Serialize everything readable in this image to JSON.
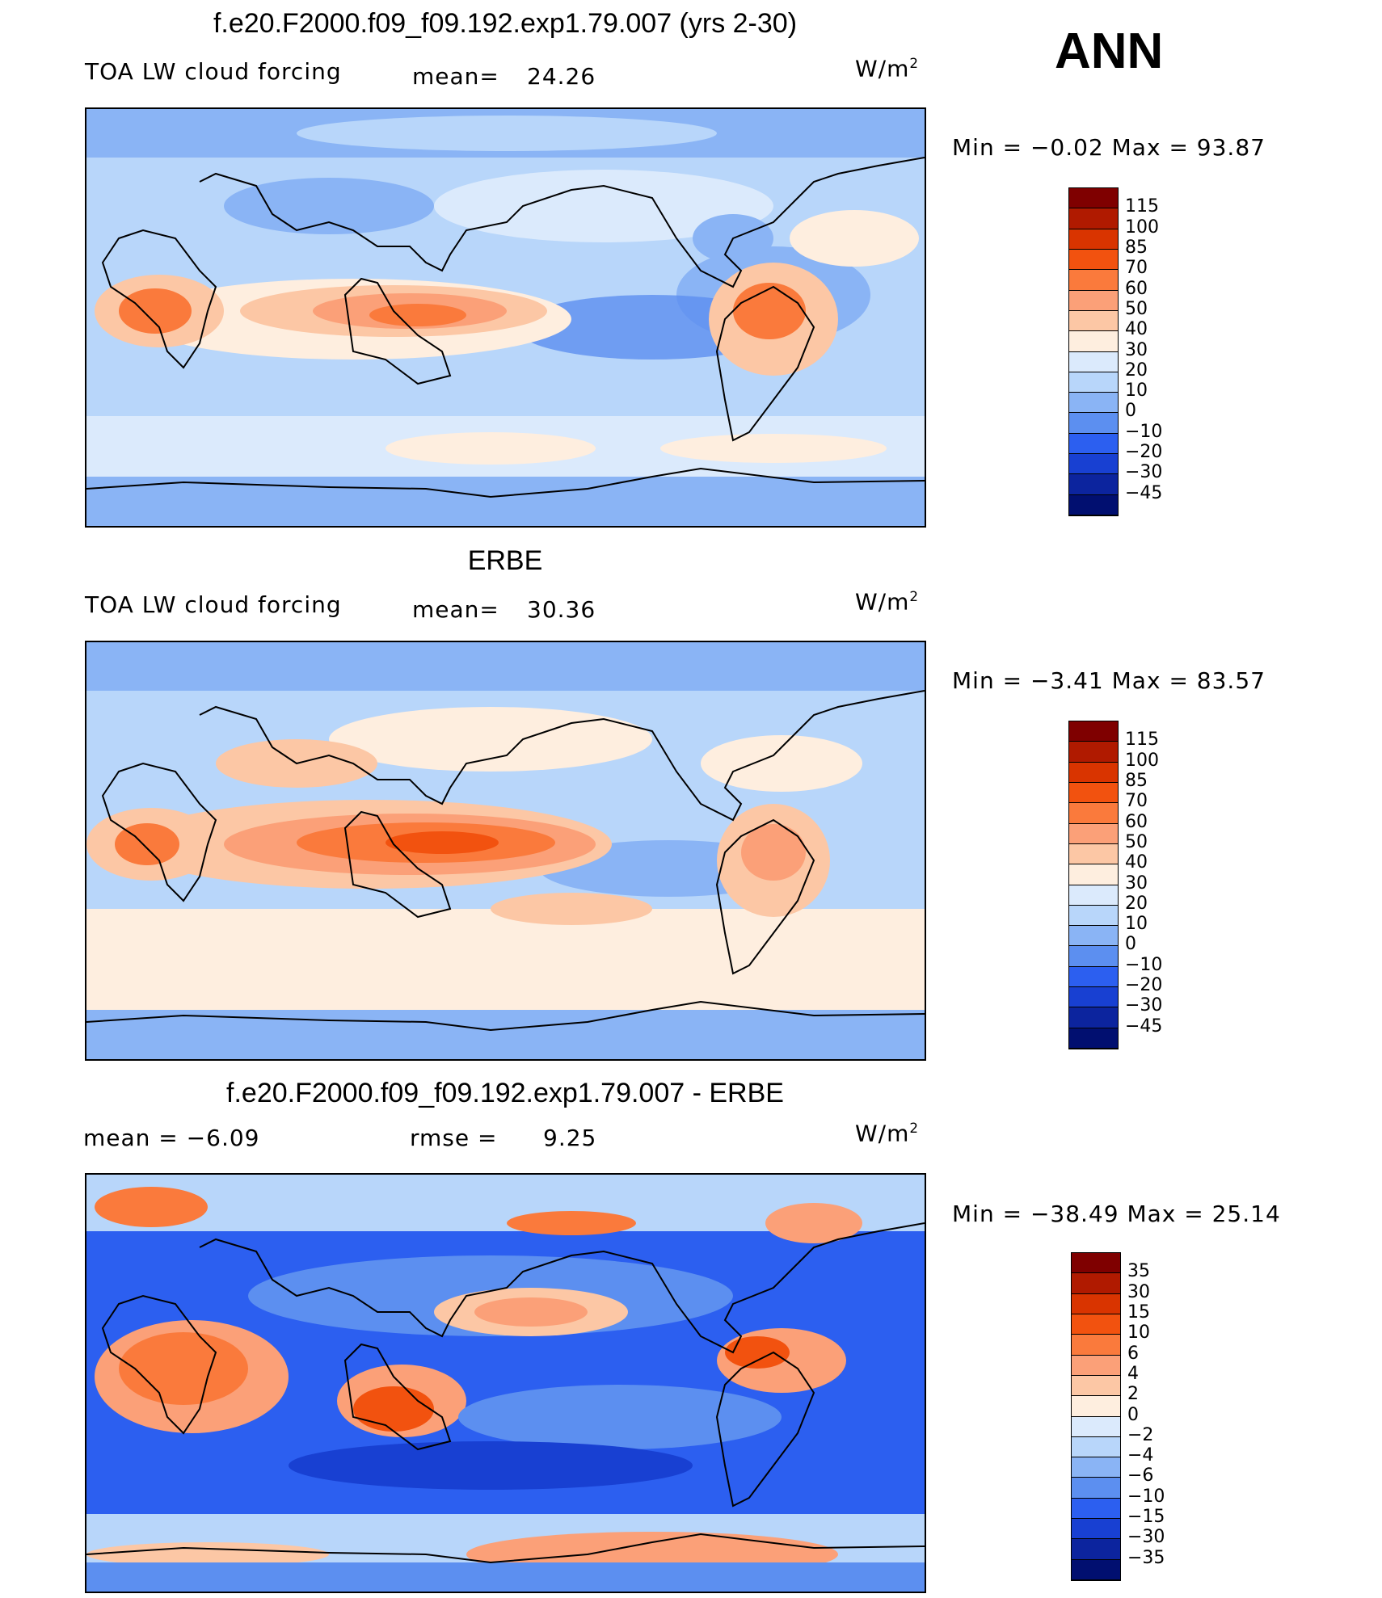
{
  "season": "ANN",
  "units": "W/m",
  "units_exp": "2",
  "panels": [
    {
      "title": "f.e20.F2000.f09_f09.192.exp1.79.007 (yrs 2-30)",
      "left_label": "TOA  LW  cloud  forcing",
      "stat_label": "mean=",
      "stat_value": "24.26",
      "range_text": "Min  =    −0.02  Max  =    93.87",
      "colorbar": {
        "labels": [
          "115",
          "100",
          "85",
          "70",
          "60",
          "50",
          "40",
          "30",
          "20",
          "10",
          "0",
          "−10",
          "−20",
          "−30",
          "−45"
        ],
        "colors": [
          "#7f0000",
          "#b01a00",
          "#d93400",
          "#f2520f",
          "#fa7a3c",
          "#fba078",
          "#fcc7a5",
          "#feeedf",
          "#dbeafc",
          "#b8d6fa",
          "#8ab4f5",
          "#5c8ff0",
          "#2c5ff0",
          "#1840d2",
          "#0c249e",
          "#010f70"
        ]
      }
    },
    {
      "title": "ERBE",
      "left_label": "TOA  LW  cloud  forcing",
      "stat_label": "mean=",
      "stat_value": "30.36",
      "range_text": "Min  =    −3.41  Max  =    83.57",
      "colorbar": {
        "labels": [
          "115",
          "100",
          "85",
          "70",
          "60",
          "50",
          "40",
          "30",
          "20",
          "10",
          "0",
          "−10",
          "−20",
          "−30",
          "−45"
        ],
        "colors": [
          "#7f0000",
          "#b01a00",
          "#d93400",
          "#f2520f",
          "#fa7a3c",
          "#fba078",
          "#fcc7a5",
          "#feeedf",
          "#dbeafc",
          "#b8d6fa",
          "#8ab4f5",
          "#5c8ff0",
          "#2c5ff0",
          "#1840d2",
          "#0c249e",
          "#010f70"
        ]
      }
    },
    {
      "title": "f.e20.F2000.f09_f09.192.exp1.79.007 - ERBE",
      "left_label": "mean  =    −6.09",
      "stat_label": "rmse  =",
      "stat_value": "9.25",
      "range_text": "Min  =  −38.49  Max  =    25.14",
      "colorbar": {
        "labels": [
          "35",
          "30",
          "15",
          "10",
          "6",
          "4",
          "2",
          "0",
          "−2",
          "−4",
          "−6",
          "−10",
          "−15",
          "−30",
          "−35"
        ],
        "colors": [
          "#7f0000",
          "#b01a00",
          "#d93400",
          "#f2520f",
          "#fa7a3c",
          "#fba078",
          "#fcc7a5",
          "#feeedf",
          "#dbeafc",
          "#b8d6fa",
          "#8ab4f5",
          "#5c8ff0",
          "#2c5ff0",
          "#1840d2",
          "#0c249e",
          "#010f70"
        ]
      }
    }
  ]
}
